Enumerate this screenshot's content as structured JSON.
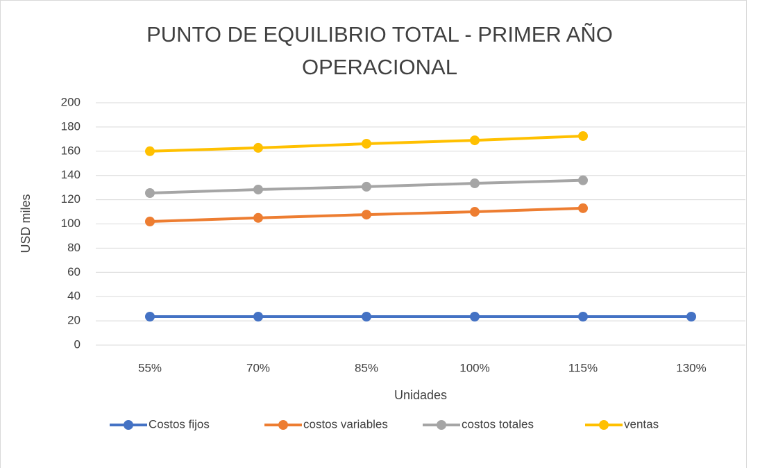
{
  "chart_data": {
    "type": "line",
    "title": "PUNTO DE EQUILIBRIO TOTAL - PRIMER AÑO OPERACIONAL",
    "x_label": "Unidades",
    "y_label": "USD miles",
    "categories": [
      "55%",
      "70%",
      "85%",
      "100%",
      "115%",
      "130%"
    ],
    "series": [
      {
        "name": "Costos fijos",
        "color": "#4472c4",
        "values": [
          23.5,
          23.5,
          23.5,
          23.5,
          23.5,
          23.5
        ]
      },
      {
        "name": "costos variables",
        "color": "#ed7d31",
        "values": [
          102,
          105,
          107.7,
          110,
          113,
          null
        ]
      },
      {
        "name": "costos totales",
        "color": "#a5a5a5",
        "values": [
          125.5,
          128.4,
          130.7,
          133.5,
          136,
          null
        ]
      },
      {
        "name": "ventas",
        "color": "#ffc000",
        "values": [
          160,
          162.8,
          166.2,
          169,
          172.5,
          null
        ]
      }
    ],
    "ylim": [
      0,
      200
    ],
    "yticks": [
      0,
      20,
      40,
      60,
      80,
      100,
      120,
      140,
      160,
      180,
      200
    ],
    "grid": true,
    "legend": "bottom"
  }
}
